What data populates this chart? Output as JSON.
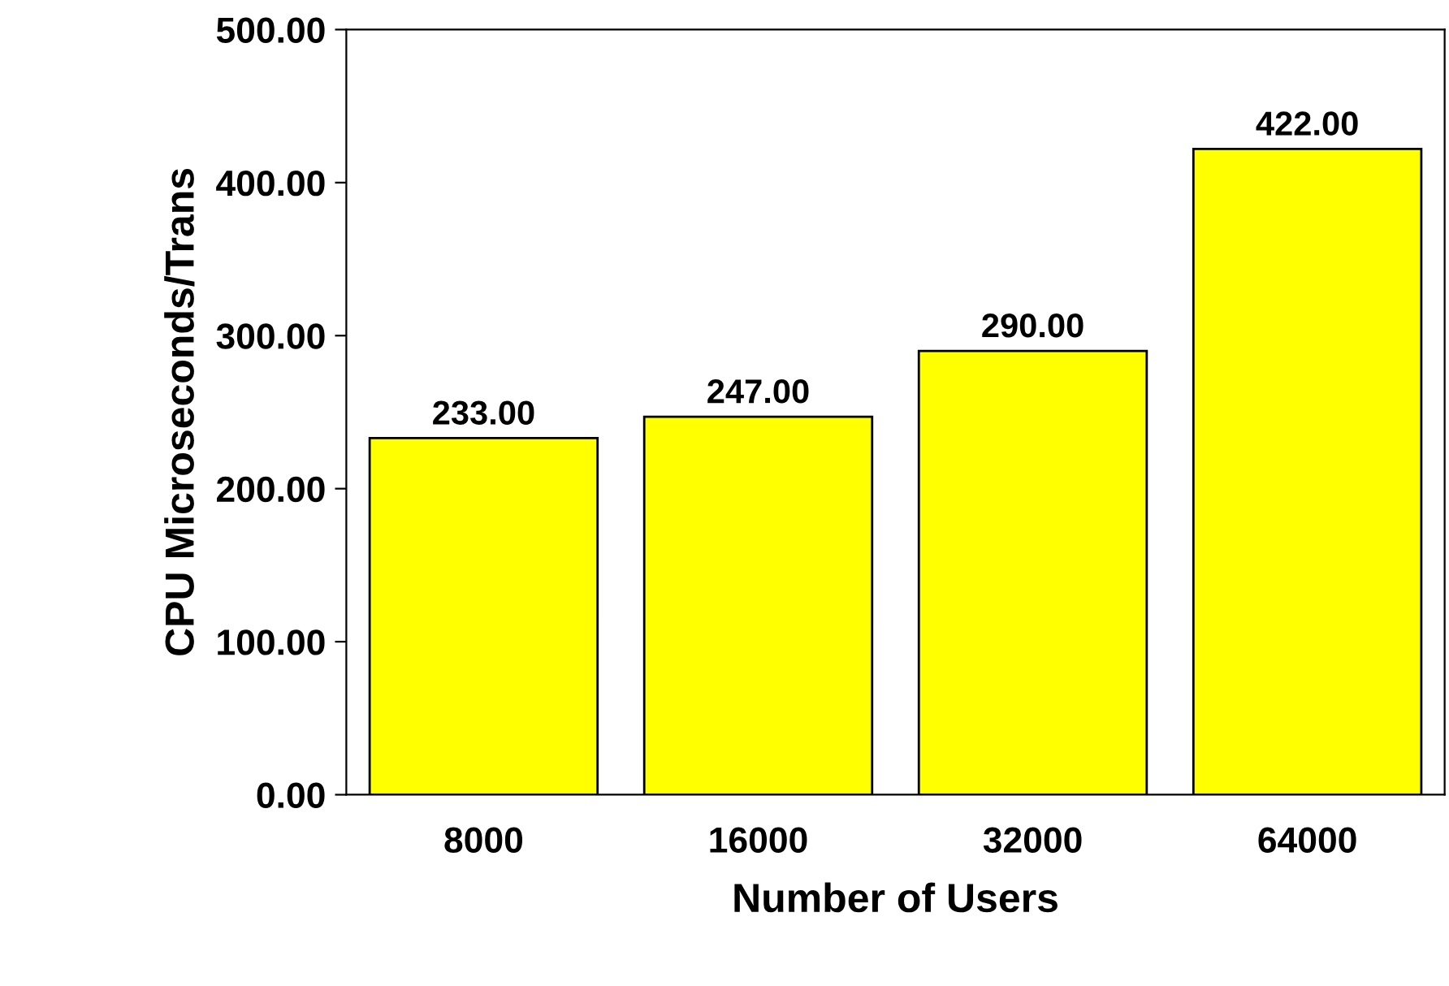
{
  "chart_data": {
    "type": "bar",
    "xlabel": "Number of Users",
    "ylabel": "CPU Microseconds/Trans",
    "categories": [
      "8000",
      "16000",
      "32000",
      "64000"
    ],
    "values": [
      233,
      247,
      290,
      422
    ],
    "value_labels": [
      "233.00",
      "247.00",
      "290.00",
      "422.00"
    ],
    "color": "#ffff00",
    "ylim": [
      0,
      500
    ],
    "yticks": [
      {
        "value": 0,
        "label": "0.00"
      },
      {
        "value": 100,
        "label": "100.00"
      },
      {
        "value": 200,
        "label": "200.00"
      },
      {
        "value": 300,
        "label": "300.00"
      },
      {
        "value": 400,
        "label": "400.00"
      },
      {
        "value": 500,
        "label": "500.00"
      }
    ],
    "grid": false,
    "legend": false
  }
}
